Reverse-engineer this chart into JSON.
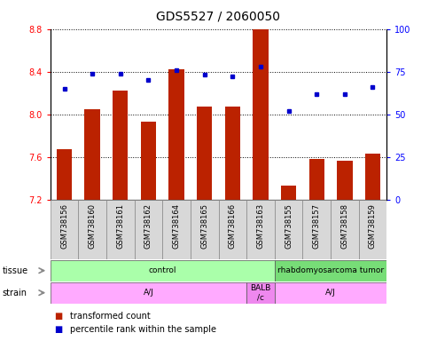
{
  "title": "GDS5527 / 2060050",
  "samples": [
    "GSM738156",
    "GSM738160",
    "GSM738161",
    "GSM738162",
    "GSM738164",
    "GSM738165",
    "GSM738166",
    "GSM738163",
    "GSM738155",
    "GSM738157",
    "GSM738158",
    "GSM738159"
  ],
  "transformed_count": [
    7.67,
    8.05,
    8.22,
    7.93,
    8.42,
    8.07,
    8.07,
    8.82,
    7.33,
    7.58,
    7.56,
    7.63
  ],
  "percentile_rank": [
    65,
    74,
    74,
    70,
    76,
    73,
    72,
    78,
    52,
    62,
    62,
    66
  ],
  "ylim_left": [
    7.2,
    8.8
  ],
  "ylim_right": [
    0,
    100
  ],
  "yticks_left": [
    7.2,
    7.6,
    8.0,
    8.4,
    8.8
  ],
  "yticks_right": [
    0,
    25,
    50,
    75,
    100
  ],
  "bar_color": "#bb2200",
  "dot_color": "#0000cc",
  "tissue_groups": [
    {
      "label": "control",
      "start": 0,
      "end": 8,
      "color": "#aaffaa"
    },
    {
      "label": "rhabdomyosarcoma tumor",
      "start": 8,
      "end": 12,
      "color": "#77dd77"
    }
  ],
  "strain_groups": [
    {
      "label": "A/J",
      "start": 0,
      "end": 7,
      "color": "#ffaaff"
    },
    {
      "label": "BALB\n/c",
      "start": 7,
      "end": 8,
      "color": "#ee88ee"
    },
    {
      "label": "A/J",
      "start": 8,
      "end": 12,
      "color": "#ffaaff"
    }
  ],
  "legend_items": [
    {
      "color": "#bb2200",
      "label": "transformed count"
    },
    {
      "color": "#0000cc",
      "label": "percentile rank within the sample"
    }
  ],
  "title_fontsize": 10,
  "tick_fontsize": 7,
  "label_fontsize": 7,
  "sample_fontsize": 6
}
